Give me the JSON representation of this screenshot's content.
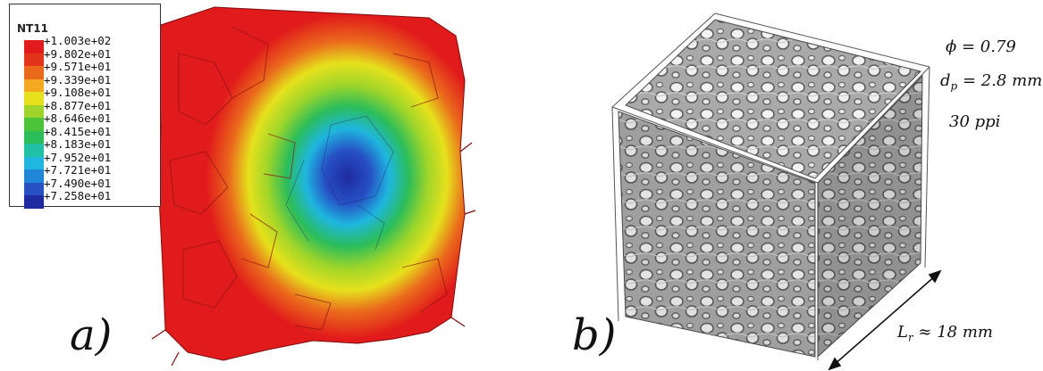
{
  "panels": {
    "a": {
      "label": "a)",
      "legend": {
        "title": "NT11",
        "entries": [
          {
            "value": "+1.003e+02",
            "color": "#e11b1b"
          },
          {
            "value": "+9.802e+01",
            "color": "#e3331a"
          },
          {
            "value": "+9.571e+01",
            "color": "#ea6a1c"
          },
          {
            "value": "+9.339e+01",
            "color": "#f2a81f"
          },
          {
            "value": "+9.108e+01",
            "color": "#e6e11c"
          },
          {
            "value": "+8.877e+01",
            "color": "#9fd52a"
          },
          {
            "value": "+8.646e+01",
            "color": "#4cc43a"
          },
          {
            "value": "+8.415e+01",
            "color": "#2bbd5a"
          },
          {
            "value": "+8.183e+01",
            "color": "#21c1a6"
          },
          {
            "value": "+7.952e+01",
            "color": "#1fb6df"
          },
          {
            "value": "+7.721e+01",
            "color": "#2086d8"
          },
          {
            "value": "+7.490e+01",
            "color": "#2650c4"
          },
          {
            "value": "+7.258e+01",
            "color": "#1f2aa0"
          }
        ]
      }
    },
    "b": {
      "label": "b)",
      "phi_label": "ϕ = 0.79",
      "dp_label_main": "d",
      "dp_label_sub": "p",
      "dp_label_rest": " = 2.8 mm",
      "ppi_label": "30 ppi",
      "lr_label_main": "L",
      "lr_label_sub": "r",
      "lr_label_rest": " ≈ 18 mm"
    }
  }
}
